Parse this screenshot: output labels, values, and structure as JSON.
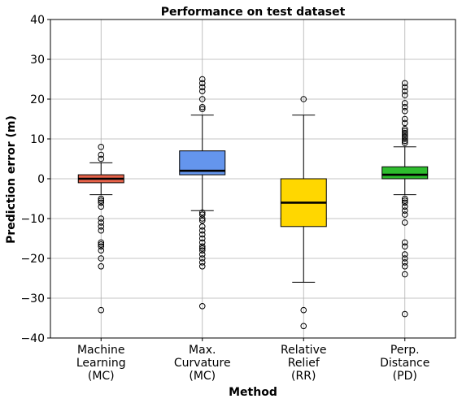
{
  "chart_data": {
    "type": "boxplot",
    "title": "Performance on test dataset",
    "xlabel": "Method",
    "ylabel": "Prediction error (m)",
    "ylim": [
      -40,
      40
    ],
    "yticks": [
      -40,
      -30,
      -20,
      -10,
      0,
      10,
      20,
      30,
      40
    ],
    "ytick_labels": [
      "−40",
      "−30",
      "−20",
      "−10",
      "0",
      "10",
      "20",
      "30",
      "40"
    ],
    "grid": true,
    "series": [
      {
        "label_lines": [
          "Machine",
          "Learning",
          "(MC)"
        ],
        "color": "#e8634a",
        "q1": -1,
        "median": 0,
        "q3": 1,
        "whisker_low": -4,
        "whisker_high": 4,
        "outliers": [
          8,
          6,
          5,
          -5,
          -5.5,
          -6,
          -7,
          -10,
          -11,
          -12,
          -13,
          -16,
          -16.5,
          -17,
          -18,
          -20,
          -22,
          -33
        ]
      },
      {
        "label_lines": [
          "Max.",
          "Curvature",
          "(MC)"
        ],
        "color": "#6495ed",
        "q1": 1,
        "median": 2,
        "q3": 7,
        "whisker_low": -8,
        "whisker_high": 16,
        "outliers": [
          25,
          24,
          23,
          22,
          20,
          18,
          17.5,
          -8.5,
          -9,
          -10,
          -10.5,
          -12,
          -13,
          -14,
          -15,
          -16,
          -17,
          -17.5,
          -18,
          -19,
          -20,
          -21,
          -22,
          -32
        ]
      },
      {
        "label_lines": [
          "Relative",
          "Relief",
          "(RR)"
        ],
        "color": "#ffd700",
        "q1": -12,
        "median": -6,
        "q3": 0,
        "whisker_low": -26,
        "whisker_high": 16,
        "outliers": [
          20,
          -33,
          -37
        ]
      },
      {
        "label_lines": [
          "Perp.",
          "Distance",
          "(PD)"
        ],
        "color": "#2ebd2e",
        "q1": 0,
        "median": 1,
        "q3": 3,
        "whisker_low": -4,
        "whisker_high": 8,
        "outliers": [
          24,
          23,
          22,
          21,
          19,
          18,
          17,
          15,
          14,
          12.5,
          12,
          11.5,
          11,
          10.5,
          10,
          9.5,
          9,
          -5,
          -5.5,
          -6,
          -7,
          -8,
          -9,
          -11,
          -16,
          -17,
          -19,
          -20,
          -21,
          -22,
          -24,
          -34
        ]
      }
    ]
  }
}
